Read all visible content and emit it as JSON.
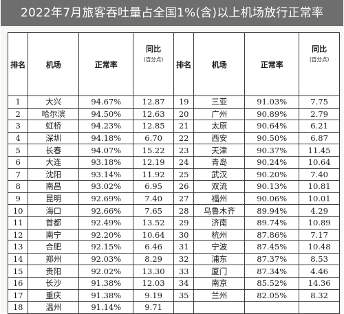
{
  "title": "2022年7月旅客吞吐量占全国1%(含)以上机场放行正常率",
  "header": {
    "rank": "排名",
    "airport": "机场",
    "rate": "正常率",
    "yoy": "同比",
    "yoy_unit": "(百分点)"
  },
  "rows": [
    {
      "rank": "1",
      "airport": "大兴",
      "rate": "94.67%",
      "yoy": "12.87"
    },
    {
      "rank": "2",
      "airport": "哈尔滨",
      "rate": "94.50%",
      "yoy": "12.63"
    },
    {
      "rank": "3",
      "airport": "虹桥",
      "rate": "94.23%",
      "yoy": "12.85"
    },
    {
      "rank": "4",
      "airport": "深圳",
      "rate": "94.18%",
      "yoy": "6.70"
    },
    {
      "rank": "5",
      "airport": "长春",
      "rate": "94.07%",
      "yoy": "15.22"
    },
    {
      "rank": "6",
      "airport": "大连",
      "rate": "93.18%",
      "yoy": "12.19"
    },
    {
      "rank": "7",
      "airport": "沈阳",
      "rate": "93.14%",
      "yoy": "11.92"
    },
    {
      "rank": "8",
      "airport": "南昌",
      "rate": "93.02%",
      "yoy": "6.95"
    },
    {
      "rank": "9",
      "airport": "昆明",
      "rate": "92.69%",
      "yoy": "7.40"
    },
    {
      "rank": "10",
      "airport": "海口",
      "rate": "92.66%",
      "yoy": "7.65"
    },
    {
      "rank": "11",
      "airport": "首都",
      "rate": "92.49%",
      "yoy": "13.52"
    },
    {
      "rank": "12",
      "airport": "南宁",
      "rate": "92.20%",
      "yoy": "10.64"
    },
    {
      "rank": "13",
      "airport": "合肥",
      "rate": "92.15%",
      "yoy": "6.46"
    },
    {
      "rank": "14",
      "airport": "郑州",
      "rate": "92.03%",
      "yoy": "8.29"
    },
    {
      "rank": "15",
      "airport": "贵阳",
      "rate": "92.02%",
      "yoy": "13.30"
    },
    {
      "rank": "16",
      "airport": "长沙",
      "rate": "91.38%",
      "yoy": "12.03"
    },
    {
      "rank": "17",
      "airport": "重庆",
      "rate": "91.38%",
      "yoy": "9.19"
    },
    {
      "rank": "18",
      "airport": "温州",
      "rate": "91.14%",
      "yoy": "9.71"
    }
  ],
  "rows_right": [
    {
      "rank": "19",
      "airport": "三亚",
      "rate": "91.03%",
      "yoy": "7.75"
    },
    {
      "rank": "20",
      "airport": "广州",
      "rate": "90.89%",
      "yoy": "2.79"
    },
    {
      "rank": "21",
      "airport": "太原",
      "rate": "90.64%",
      "yoy": "6.21"
    },
    {
      "rank": "22",
      "airport": "西安",
      "rate": "90.50%",
      "yoy": "6.87"
    },
    {
      "rank": "23",
      "airport": "天津",
      "rate": "90.37%",
      "yoy": "11.45"
    },
    {
      "rank": "24",
      "airport": "青岛",
      "rate": "90.24%",
      "yoy": "10.64"
    },
    {
      "rank": "25",
      "airport": "武汉",
      "rate": "90.20%",
      "yoy": "7.40"
    },
    {
      "rank": "26",
      "airport": "双流",
      "rate": "90.13%",
      "yoy": "10.81"
    },
    {
      "rank": "27",
      "airport": "福州",
      "rate": "90.06%",
      "yoy": "10.01"
    },
    {
      "rank": "28",
      "airport": "乌鲁木齐",
      "rate": "89.94%",
      "yoy": "4.29"
    },
    {
      "rank": "29",
      "airport": "济南",
      "rate": "89.74%",
      "yoy": "10.89"
    },
    {
      "rank": "30",
      "airport": "杭州",
      "rate": "87.86%",
      "yoy": "7.17"
    },
    {
      "rank": "31",
      "airport": "宁波",
      "rate": "87.45%",
      "yoy": "10.48"
    },
    {
      "rank": "32",
      "airport": "浦东",
      "rate": "87.37%",
      "yoy": "8.53"
    },
    {
      "rank": "33",
      "airport": "厦门",
      "rate": "87.34%",
      "yoy": "4.46"
    },
    {
      "rank": "34",
      "airport": "南京",
      "rate": "85.52%",
      "yoy": "14.36"
    },
    {
      "rank": "35",
      "airport": "兰州",
      "rate": "82.05%",
      "yoy": "8.32"
    }
  ]
}
